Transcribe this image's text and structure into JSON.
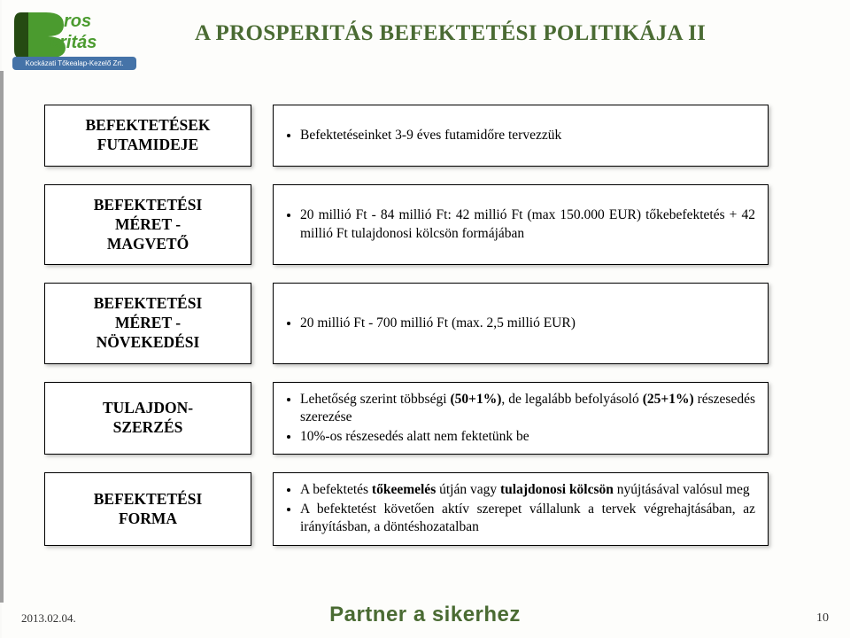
{
  "colors": {
    "title": "#4a6b33",
    "slogan": "#4a6b33",
    "box_border": "#000000",
    "box_bg": "#ffffff",
    "logo_green": "#4b9b2f",
    "logo_dark": "#254a12",
    "logo_subline_bg": "#4573a8"
  },
  "title": "A PROSPERITÁS BEFEKTETÉSI POLITIKÁJA II",
  "logo": {
    "line1": "ros",
    "line2": "eritás",
    "subline": "Kockázati Tőkealap-Kezelő Zrt."
  },
  "rows": [
    {
      "label": "BEFEKTETÉSEK\nFUTAMIDEJE",
      "items": [
        "Befektetéseinket 3-9 éves futamidőre tervezzük"
      ]
    },
    {
      "label": "BEFEKTETÉSI\nMÉRET -\nMAGVETŐ",
      "items": [
        "20 millió Ft - 84 millió Ft: 42 millió Ft (max 150.000 EUR) tőkebefektetés + 42 millió Ft tulajdonosi kölcsön formájában"
      ]
    },
    {
      "label": "BEFEKTETÉSI\nMÉRET -\nNÖVEKEDÉSI",
      "items": [
        "20 millió Ft - 700 millió Ft (max. 2,5 millió EUR)"
      ]
    },
    {
      "label": "TULAJDON-\nSZERZÉS",
      "items": [
        "Lehetőség szerint többségi <span class=\"b\">(50+1%)</span>, de legalább befolyásoló <span class=\"b\">(25+1%)</span> részesedés szerezése",
        "10%-os részesedés alatt nem fektetünk be"
      ]
    },
    {
      "label": "BEFEKTETÉSI\nFORMA",
      "items": [
        "A befektetés <span class=\"b\">tőkeemelés</span> útján vagy <span class=\"b\">tulajdonosi kölcsön</span> nyújtásával valósul meg",
        "A befektetést követően aktív szerepet vállalunk a tervek végrehajtásában, az irányításban, a döntéshozatalban"
      ]
    }
  ],
  "footer": {
    "date": "2013.02.04.",
    "slogan": "Partner a sikerhez",
    "page": "10"
  },
  "style": {
    "title_fontsize": 25,
    "label_fontsize": 17.5,
    "body_fontsize": 15.5,
    "slogan_fontsize": 24,
    "row_gap": 20,
    "left_cell_width": 234,
    "right_cell_width": 560
  }
}
